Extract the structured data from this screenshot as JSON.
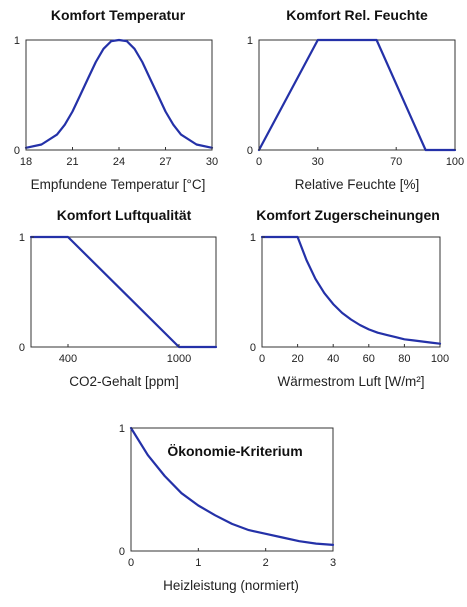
{
  "colors": {
    "line": "#2431a8",
    "axis": "#333333",
    "text": "#222222",
    "background": "#ffffff"
  },
  "chart_data": [
    {
      "type": "line",
      "title": "Komfort Temperatur",
      "xlabel": "Empfundene Temperatur [°C]",
      "ylabel": "",
      "x_ticks": [
        "18",
        "21",
        "24",
        "27",
        "30"
      ],
      "x_tick_values": [
        18,
        21,
        24,
        27,
        30
      ],
      "y_ticks": [
        "0",
        "1"
      ],
      "y_tick_values": [
        0,
        1
      ],
      "xlim": [
        18,
        30
      ],
      "ylim": [
        0,
        1
      ],
      "grid": false,
      "series": [
        {
          "x": [
            18,
            19,
            20,
            20.5,
            21,
            21.5,
            22,
            22.5,
            23,
            23.5,
            24,
            24.5,
            25,
            25.5,
            26,
            26.5,
            27,
            27.5,
            28,
            29,
            30
          ],
          "y": [
            0.02,
            0.05,
            0.14,
            0.23,
            0.35,
            0.5,
            0.65,
            0.8,
            0.92,
            0.99,
            1,
            0.99,
            0.92,
            0.8,
            0.65,
            0.5,
            0.35,
            0.23,
            0.14,
            0.05,
            0.02
          ]
        }
      ]
    },
    {
      "type": "line",
      "title": "Komfort Rel. Feuchte",
      "xlabel": "Relative Feuchte [%]",
      "ylabel": "",
      "x_ticks": [
        "0",
        "30",
        "70",
        "100"
      ],
      "x_tick_values": [
        0,
        30,
        70,
        100
      ],
      "y_ticks": [
        "0",
        "1"
      ],
      "y_tick_values": [
        0,
        1
      ],
      "xlim": [
        0,
        100
      ],
      "ylim": [
        0,
        1
      ],
      "grid": false,
      "series": [
        {
          "x": [
            0,
            30,
            60,
            85,
            100
          ],
          "y": [
            0,
            1,
            1,
            0,
            0
          ]
        }
      ]
    },
    {
      "type": "line",
      "title": "Komfort Luftqualität",
      "xlabel": "CO2-Gehalt [ppm]",
      "ylabel": "",
      "x_ticks": [
        "400",
        "1000"
      ],
      "x_tick_values": [
        400,
        1000
      ],
      "y_ticks": [
        "0",
        "1"
      ],
      "y_tick_values": [
        0,
        1
      ],
      "xlim": [
        200,
        1200
      ],
      "ylim": [
        0,
        1
      ],
      "grid": false,
      "series": [
        {
          "x": [
            200,
            400,
            1000,
            1200
          ],
          "y": [
            1,
            1,
            0,
            0
          ]
        }
      ]
    },
    {
      "type": "line",
      "title": "Komfort Zugerscheinungen",
      "xlabel": "Wärmestrom Luft [W/m²]",
      "ylabel": "",
      "x_ticks": [
        "0",
        "20",
        "40",
        "60",
        "80",
        "100"
      ],
      "x_tick_values": [
        0,
        20,
        40,
        60,
        80,
        100
      ],
      "y_ticks": [
        "0",
        "1"
      ],
      "y_tick_values": [
        0,
        1
      ],
      "xlim": [
        0,
        100
      ],
      "ylim": [
        0,
        1
      ],
      "grid": false,
      "series": [
        {
          "x": [
            0,
            20,
            25,
            30,
            35,
            40,
            45,
            50,
            55,
            60,
            65,
            70,
            75,
            80,
            85,
            90,
            95,
            100
          ],
          "y": [
            1,
            1,
            0.79,
            0.62,
            0.49,
            0.39,
            0.31,
            0.25,
            0.2,
            0.16,
            0.13,
            0.11,
            0.09,
            0.07,
            0.06,
            0.05,
            0.04,
            0.03
          ]
        }
      ]
    },
    {
      "type": "line",
      "title": "Ökonomie-Kriterium",
      "xlabel": "Heizleistung (normiert)",
      "ylabel": "",
      "x_ticks": [
        "0",
        "1",
        "2",
        "3"
      ],
      "x_tick_values": [
        0,
        1,
        2,
        3
      ],
      "y_ticks": [
        "1",
        "0"
      ],
      "y_tick_values": [
        1,
        0
      ],
      "xlim": [
        0,
        3
      ],
      "ylim": [
        0,
        1
      ],
      "grid": false,
      "series": [
        {
          "x": [
            0,
            0.25,
            0.5,
            0.75,
            1,
            1.25,
            1.5,
            1.75,
            2,
            2.25,
            2.5,
            2.75,
            3
          ],
          "y": [
            1,
            0.78,
            0.61,
            0.47,
            0.37,
            0.29,
            0.22,
            0.17,
            0.14,
            0.11,
            0.08,
            0.06,
            0.05
          ]
        }
      ]
    }
  ]
}
